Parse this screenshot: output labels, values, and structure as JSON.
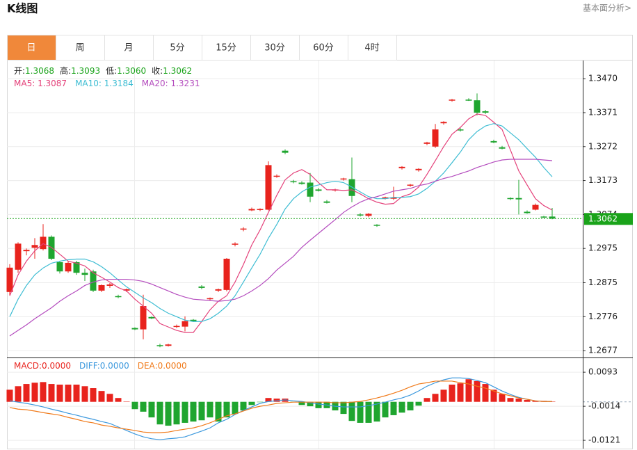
{
  "header": {
    "title": "K线图",
    "link": "基本面分析>"
  },
  "tabs": [
    "日",
    "周",
    "月",
    "5分",
    "15分",
    "30分",
    "60分",
    "4时"
  ],
  "active_tab": 0,
  "quote": [
    {
      "label": "开:",
      "value": "1.3068"
    },
    {
      "label": "高:",
      "value": "1.3093"
    },
    {
      "label": "低:",
      "value": "1.3060"
    },
    {
      "label": "收:",
      "value": "1.3062"
    }
  ],
  "quote_color": "#1aa31a",
  "chart_data": [
    {
      "type": "candlestick",
      "open": [
        1.2848,
        1.2913,
        1.2967,
        1.2977,
        1.2973,
        1.3009,
        1.2935,
        1.2908,
        1.2935,
        1.2904,
        1.2908,
        1.2852,
        1.2866,
        1.2836,
        1.2852,
        1.2743,
        1.2739,
        1.2775,
        1.2693,
        1.2691,
        1.2747,
        1.2747,
        1.2767,
        1.2864,
        1.2828,
        1.2852,
        1.2854,
        1.2987,
        1.3031,
        1.3086,
        1.3088,
        1.3088,
        1.3185,
        1.326,
        1.3171,
        1.3167,
        1.3167,
        1.3147,
        1.3112,
        1.3145,
        1.3177,
        1.3177,
        1.3074,
        1.307,
        1.3044,
        1.312,
        1.312,
        1.3209,
        1.3159,
        1.3203,
        1.328,
        1.3272,
        1.334,
        1.3407,
        1.3322,
        1.3409,
        1.3407,
        1.3375,
        1.3288,
        1.327,
        1.3122,
        1.3122,
        1.3082,
        1.3088,
        1.3068,
        1.3068
      ],
      "high": [
        1.2929,
        1.2993,
        1.2975,
        1.3005,
        1.3046,
        1.3013,
        1.2939,
        1.2937,
        1.2939,
        1.2916,
        1.2913,
        1.287,
        1.2874,
        1.284,
        1.2858,
        1.2745,
        1.284,
        1.2777,
        1.2697,
        1.2697,
        1.2753,
        1.2777,
        1.2769,
        1.2868,
        1.2832,
        1.2858,
        1.2947,
        1.2993,
        1.3037,
        1.3094,
        1.3092,
        1.3229,
        1.3191,
        1.3264,
        1.3175,
        1.3171,
        1.3195,
        1.3151,
        1.3116,
        1.3149,
        1.3181,
        1.324,
        1.3078,
        1.3078,
        1.3046,
        1.3126,
        1.3155,
        1.3215,
        1.3163,
        1.3209,
        1.3286,
        1.3338,
        1.3346,
        1.3411,
        1.3326,
        1.3413,
        1.3427,
        1.3379,
        1.3292,
        1.3274,
        1.3124,
        1.3175,
        1.3086,
        1.3106,
        1.307,
        1.3093
      ],
      "low": [
        1.2838,
        1.2904,
        1.2955,
        1.2945,
        1.2969,
        1.2941,
        1.2902,
        1.2904,
        1.2898,
        1.288,
        1.2848,
        1.2848,
        1.286,
        1.283,
        1.2848,
        1.2737,
        1.271,
        1.2769,
        1.2687,
        1.2689,
        1.2743,
        1.2733,
        1.2761,
        1.2856,
        1.2824,
        1.2848,
        1.285,
        1.2981,
        1.3025,
        1.3084,
        1.3084,
        1.3086,
        1.3181,
        1.325,
        1.3165,
        1.3161,
        1.311,
        1.3141,
        1.3106,
        1.3141,
        1.3173,
        1.311,
        1.3068,
        1.3066,
        1.3038,
        1.3118,
        1.3116,
        1.3205,
        1.3155,
        1.3199,
        1.3276,
        1.3268,
        1.3336,
        1.3403,
        1.3316,
        1.3405,
        1.3363,
        1.3367,
        1.3282,
        1.3264,
        1.3116,
        1.3074,
        1.3076,
        1.3086,
        1.3064,
        1.306
      ],
      "close": [
        1.2919,
        1.2989,
        1.2971,
        1.2985,
        1.3009,
        1.2945,
        1.2908,
        1.2933,
        1.2904,
        1.2898,
        1.2852,
        1.2868,
        1.287,
        1.2834,
        1.2856,
        1.2739,
        1.2807,
        1.2771,
        1.2691,
        1.2695,
        1.2749,
        1.2763,
        1.2763,
        1.286,
        1.283,
        1.2856,
        1.2945,
        1.2989,
        1.3033,
        1.309,
        1.309,
        1.3218,
        1.3187,
        1.3254,
        1.3169,
        1.3163,
        1.3126,
        1.3143,
        1.3108,
        1.3147,
        1.3179,
        1.3128,
        1.3072,
        1.3076,
        1.3042,
        1.3124,
        1.3124,
        1.3213,
        1.3161,
        1.3207,
        1.3284,
        1.3322,
        1.3344,
        1.3409,
        1.332,
        1.3407,
        1.3371,
        1.3371,
        1.3284,
        1.3266,
        1.312,
        1.3118,
        1.3078,
        1.3102,
        1.3066,
        1.3062
      ],
      "up_color": "#e8231d",
      "down_color": "#1fa52f",
      "last_price_color": "#1aa31a",
      "ylim": [
        1.2657,
        1.3523
      ],
      "yticks": [
        {
          "value": 1.347,
          "label": "1.3470"
        },
        1.3371,
        1.3272,
        1.3173,
        1.3074,
        1.2975,
        1.2875,
        1.2776,
        1.2677
      ],
      "grid": true,
      "separator": ": ",
      "series": [
        {
          "name": "MA5",
          "color": "#e4417a",
          "current": "1.3087",
          "values": [
            1.2837,
            1.2898,
            1.2938,
            1.2968,
            1.2989,
            1.2978,
            1.2958,
            1.2938,
            1.2932,
            1.2924,
            1.2904,
            1.2891,
            1.2877,
            1.2861,
            1.2851,
            1.2827,
            1.2807,
            1.2786,
            1.2756,
            1.2746,
            1.2736,
            1.273,
            1.273,
            1.2762,
            1.2796,
            1.2821,
            1.2837,
            1.2877,
            1.2928,
            1.2985,
            1.3029,
            1.308,
            1.313,
            1.3175,
            1.3195,
            1.3205,
            1.3191,
            1.3167,
            1.3146,
            1.3146,
            1.3144,
            1.3146,
            1.3134,
            1.312,
            1.311,
            1.3104,
            1.3106,
            1.3126,
            1.3134,
            1.3154,
            1.3191,
            1.3231,
            1.3272,
            1.3308,
            1.3328,
            1.3353,
            1.3367,
            1.3363,
            1.3343,
            1.3322,
            1.3262,
            1.3201,
            1.316,
            1.312,
            1.31,
            1.3087
          ]
        },
        {
          "name": "MA10",
          "color": "#3ebdd3",
          "current": "1.3184",
          "values": [
            1.2776,
            1.2827,
            1.2867,
            1.2898,
            1.2918,
            1.2932,
            1.2938,
            1.2942,
            1.2944,
            1.2944,
            1.2936,
            1.2922,
            1.2904,
            1.2883,
            1.2863,
            1.2847,
            1.2831,
            1.2817,
            1.28,
            1.2786,
            1.2776,
            1.2766,
            1.2762,
            1.2762,
            1.277,
            1.2786,
            1.2807,
            1.2837,
            1.2877,
            1.2918,
            1.2958,
            1.3005,
            1.3045,
            1.309,
            1.312,
            1.314,
            1.3154,
            1.316,
            1.3167,
            1.3171,
            1.3167,
            1.3154,
            1.314,
            1.3126,
            1.312,
            1.312,
            1.3124,
            1.3124,
            1.3126,
            1.3134,
            1.315,
            1.3171,
            1.3195,
            1.3225,
            1.3256,
            1.3292,
            1.3316,
            1.3332,
            1.3339,
            1.3332,
            1.3312,
            1.3292,
            1.3266,
            1.3241,
            1.3211,
            1.3184
          ]
        },
        {
          "name": "MA20",
          "color": "#b44cbe",
          "current": "1.3231",
          "values": [
            1.272,
            1.2736,
            1.2752,
            1.277,
            1.2786,
            1.2802,
            1.2821,
            1.2837,
            1.2851,
            1.2867,
            1.2877,
            1.2883,
            1.2885,
            1.2885,
            1.2885,
            1.2883,
            1.2879,
            1.2871,
            1.2861,
            1.2851,
            1.2841,
            1.2833,
            1.2827,
            1.2825,
            1.2823,
            1.2821,
            1.2823,
            1.2827,
            1.2837,
            1.2851,
            1.2867,
            1.2887,
            1.2912,
            1.2932,
            1.2952,
            1.2978,
            1.2999,
            1.3019,
            1.3039,
            1.3059,
            1.308,
            1.3096,
            1.311,
            1.312,
            1.3126,
            1.3134,
            1.3142,
            1.3146,
            1.315,
            1.3158,
            1.3163,
            1.3171,
            1.3179,
            1.3185,
            1.3193,
            1.3201,
            1.3211,
            1.3219,
            1.3227,
            1.3233,
            1.3235,
            1.3235,
            1.3235,
            1.3235,
            1.3233,
            1.3231
          ]
        }
      ]
    },
    {
      "type": "macd",
      "ylim": [
        -0.0147,
        0.0137
      ],
      "yticks": [
        0.0093,
        -0.0014,
        -0.0121
      ],
      "grid": true,
      "separator": ":",
      "up_color": "#e8231d",
      "down_color": "#1fa52f",
      "series": [
        {
          "name": "MACD",
          "color": "#e8231d",
          "current": "0.0000",
          "kind": "bar",
          "values": [
            0.0038,
            0.0049,
            0.0056,
            0.006,
            0.0062,
            0.0056,
            0.0054,
            0.0054,
            0.0054,
            0.0049,
            0.0043,
            0.0034,
            0.0025,
            0.0012,
            0.0001,
            -0.0023,
            -0.0031,
            -0.0049,
            -0.0071,
            -0.0075,
            -0.0071,
            -0.0066,
            -0.0062,
            -0.0058,
            -0.0049,
            -0.0062,
            -0.0049,
            -0.0038,
            -0.0027,
            -0.001,
            -0.0001,
            0.0012,
            0.001,
            0.001,
            -0.0001,
            -0.001,
            -0.0014,
            -0.002,
            -0.002,
            -0.0027,
            -0.0038,
            -0.006,
            -0.0066,
            -0.0066,
            -0.0062,
            -0.0049,
            -0.0042,
            -0.0034,
            -0.0027,
            -0.0012,
            0.0012,
            0.0025,
            0.0038,
            0.0054,
            0.0058,
            0.0071,
            0.0065,
            0.0056,
            0.0038,
            0.0025,
            0.0012,
            0.001,
            0.0006,
            0.0003,
            0.0003,
            0.0001
          ]
        },
        {
          "name": "DIFF",
          "color": "#3b98dd",
          "current": "0.0000",
          "kind": "line",
          "values": [
            0.0003,
            -0.0001,
            -0.0005,
            -0.001,
            -0.0016,
            -0.0023,
            -0.0029,
            -0.0036,
            -0.0042,
            -0.0049,
            -0.0055,
            -0.0062,
            -0.0068,
            -0.0079,
            -0.009,
            -0.0101,
            -0.011,
            -0.0116,
            -0.0119,
            -0.0116,
            -0.0114,
            -0.011,
            -0.0101,
            -0.0092,
            -0.0082,
            -0.0066,
            -0.0055,
            -0.004,
            -0.0027,
            -0.0016,
            -0.0005,
            0.0001,
            0.0003,
            0.0006,
            0.0003,
            0.0001,
            -0.0003,
            -0.0007,
            -0.001,
            -0.0014,
            -0.0016,
            -0.0016,
            -0.0016,
            -0.0012,
            -0.0007,
            -0.0001,
            0.0006,
            0.0012,
            0.0021,
            0.0034,
            0.0049,
            0.006,
            0.0069,
            0.0075,
            0.0075,
            0.0073,
            0.0067,
            0.006,
            0.0047,
            0.0034,
            0.0023,
            0.0014,
            0.0008,
            0.0003,
            0.0001,
            0.0001
          ]
        },
        {
          "name": "DEA",
          "color": "#f07a1a",
          "current": "0.0000",
          "kind": "line",
          "values": [
            -0.0018,
            -0.0023,
            -0.0025,
            -0.0029,
            -0.0034,
            -0.0038,
            -0.0042,
            -0.0049,
            -0.0055,
            -0.0062,
            -0.0066,
            -0.0073,
            -0.0077,
            -0.0082,
            -0.0086,
            -0.009,
            -0.0095,
            -0.0097,
            -0.0097,
            -0.0095,
            -0.009,
            -0.0086,
            -0.0082,
            -0.0075,
            -0.0066,
            -0.0055,
            -0.0044,
            -0.0038,
            -0.0029,
            -0.002,
            -0.0014,
            -0.001,
            -0.0005,
            -0.0003,
            -0.0001,
            -0.0001,
            -0.0001,
            -0.0001,
            -0.0001,
            -0.0003,
            -0.0003,
            -0.0001,
            0.0001,
            0.0006,
            0.0012,
            0.0019,
            0.0027,
            0.0036,
            0.0047,
            0.0056,
            0.006,
            0.0065,
            0.0065,
            0.0065,
            0.006,
            0.0056,
            0.0049,
            0.0043,
            0.0034,
            0.0025,
            0.0019,
            0.0012,
            0.0008,
            0.0003,
            0.0001,
            0.0001
          ]
        }
      ]
    }
  ]
}
